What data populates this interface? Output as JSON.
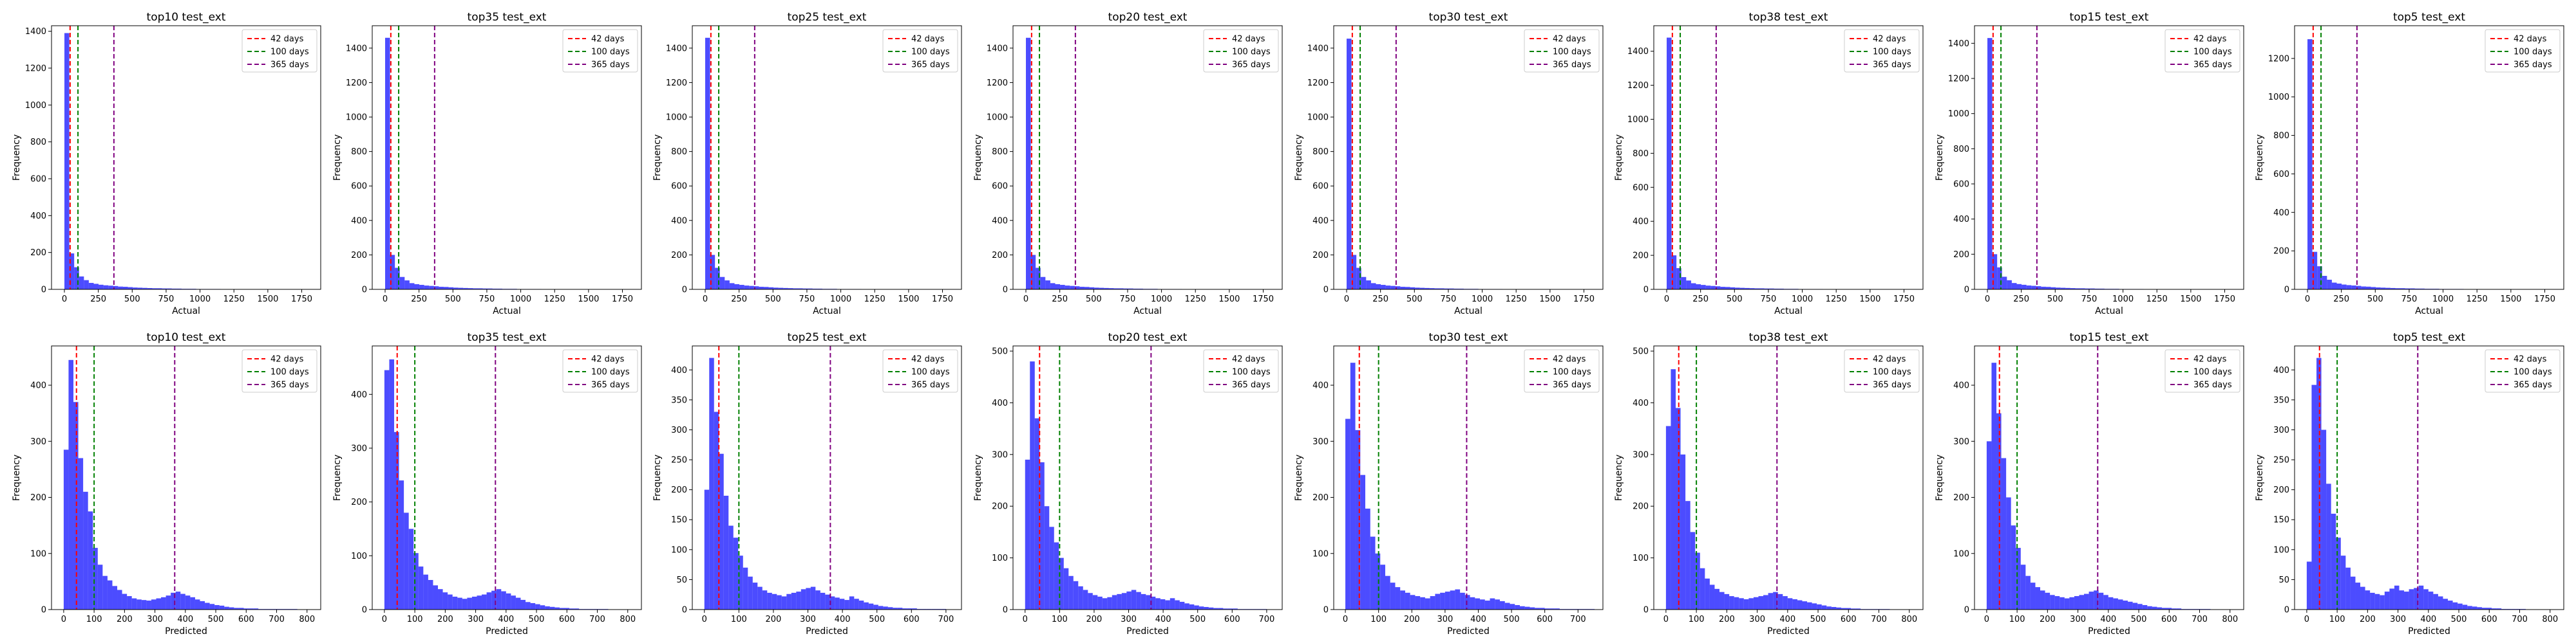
{
  "figure": {
    "legend_entries": [
      {
        "label": "42 days",
        "value": 42,
        "color": "#ff0000"
      },
      {
        "label": "100 days",
        "value": 100,
        "color": "#008000"
      },
      {
        "label": "365 days",
        "value": 365,
        "color": "#800080"
      }
    ],
    "bar_color": "#0000ff"
  },
  "chart_data": [
    {
      "type": "bar",
      "title": "top10 test_ext",
      "xlabel": "Actual",
      "ylabel": "Frequency",
      "xlim": [
        -95,
        1890
      ],
      "ylim": [
        0,
        1430
      ],
      "xticks": [
        0,
        250,
        500,
        750,
        1000,
        1250,
        1500,
        1750
      ],
      "yticks": [
        0,
        200,
        400,
        600,
        800,
        1000,
        1200,
        1400
      ],
      "bin_start": 0,
      "bin_width": 36,
      "values": [
        1390,
        195,
        120,
        70,
        50,
        35,
        30,
        25,
        22,
        20,
        18,
        15,
        14,
        12,
        10,
        9,
        8,
        7,
        6,
        6,
        5,
        5,
        4,
        4,
        3,
        3,
        3,
        2,
        2,
        2,
        2,
        2,
        1,
        1,
        1,
        1,
        1,
        1,
        1,
        1,
        1,
        1,
        1,
        1,
        1,
        1,
        1,
        1,
        1,
        1
      ],
      "legend_position": "upper right"
    },
    {
      "type": "bar",
      "title": "top35 test_ext",
      "xlabel": "Actual",
      "ylabel": "Frequency",
      "xlim": [
        -95,
        1890
      ],
      "ylim": [
        0,
        1530
      ],
      "xticks": [
        0,
        250,
        500,
        750,
        1000,
        1250,
        1500,
        1750
      ],
      "yticks": [
        0,
        200,
        400,
        600,
        800,
        1000,
        1200,
        1400
      ],
      "bin_start": 0,
      "bin_width": 36,
      "values": [
        1460,
        200,
        125,
        72,
        52,
        36,
        30,
        26,
        22,
        20,
        18,
        15,
        14,
        12,
        10,
        9,
        8,
        7,
        6,
        6,
        5,
        5,
        4,
        4,
        3,
        3,
        3,
        2,
        2,
        2,
        2,
        2,
        1,
        1,
        1,
        1,
        1,
        1,
        1,
        1,
        1,
        1,
        1,
        1,
        1,
        1,
        1,
        1,
        1,
        1
      ],
      "legend_position": "upper right"
    },
    {
      "type": "bar",
      "title": "top25 test_ext",
      "xlabel": "Actual",
      "ylabel": "Frequency",
      "xlim": [
        -95,
        1890
      ],
      "ylim": [
        0,
        1530
      ],
      "xticks": [
        0,
        250,
        500,
        750,
        1000,
        1250,
        1500,
        1750
      ],
      "yticks": [
        0,
        200,
        400,
        600,
        800,
        1000,
        1200,
        1400
      ],
      "bin_start": 0,
      "bin_width": 36,
      "values": [
        1460,
        200,
        125,
        72,
        52,
        36,
        30,
        26,
        22,
        20,
        18,
        15,
        14,
        12,
        10,
        9,
        8,
        7,
        6,
        6,
        5,
        5,
        4,
        4,
        3,
        3,
        3,
        2,
        2,
        2,
        2,
        2,
        1,
        1,
        1,
        1,
        1,
        1,
        1,
        1,
        1,
        1,
        1,
        1,
        1,
        1,
        1,
        1,
        1,
        1
      ],
      "legend_position": "upper right"
    },
    {
      "type": "bar",
      "title": "top20 test_ext",
      "xlabel": "Actual",
      "ylabel": "Frequency",
      "xlim": [
        -95,
        1890
      ],
      "ylim": [
        0,
        1530
      ],
      "xticks": [
        0,
        250,
        500,
        750,
        1000,
        1250,
        1500,
        1750
      ],
      "yticks": [
        0,
        200,
        400,
        600,
        800,
        1000,
        1200,
        1400
      ],
      "bin_start": 0,
      "bin_width": 36,
      "values": [
        1460,
        200,
        125,
        72,
        52,
        36,
        30,
        26,
        22,
        20,
        18,
        15,
        14,
        12,
        10,
        9,
        8,
        7,
        6,
        6,
        5,
        5,
        4,
        4,
        3,
        3,
        3,
        2,
        2,
        2,
        2,
        2,
        1,
        1,
        1,
        1,
        1,
        1,
        1,
        1,
        1,
        1,
        1,
        1,
        1,
        1,
        1,
        1,
        1,
        1
      ],
      "legend_position": "upper right"
    },
    {
      "type": "bar",
      "title": "top30 test_ext",
      "xlabel": "Actual",
      "ylabel": "Frequency",
      "xlim": [
        -95,
        1890
      ],
      "ylim": [
        0,
        1530
      ],
      "xticks": [
        0,
        250,
        500,
        750,
        1000,
        1250,
        1500,
        1750
      ],
      "yticks": [
        0,
        200,
        400,
        600,
        800,
        1000,
        1200,
        1400
      ],
      "bin_start": 0,
      "bin_width": 36,
      "values": [
        1455,
        200,
        125,
        72,
        52,
        36,
        30,
        26,
        22,
        20,
        18,
        15,
        14,
        12,
        10,
        9,
        8,
        7,
        6,
        6,
        5,
        5,
        4,
        4,
        3,
        3,
        3,
        2,
        2,
        2,
        2,
        2,
        1,
        1,
        1,
        1,
        1,
        1,
        1,
        1,
        1,
        1,
        1,
        1,
        1,
        1,
        1,
        1,
        1,
        1
      ],
      "legend_position": "upper right"
    },
    {
      "type": "bar",
      "title": "top38 test_ext",
      "xlabel": "Actual",
      "ylabel": "Frequency",
      "xlim": [
        -95,
        1890
      ],
      "ylim": [
        0,
        1550
      ],
      "xticks": [
        0,
        250,
        500,
        750,
        1000,
        1250,
        1500,
        1750
      ],
      "yticks": [
        0,
        200,
        400,
        600,
        800,
        1000,
        1200,
        1400
      ],
      "bin_start": 0,
      "bin_width": 36,
      "values": [
        1480,
        200,
        125,
        72,
        52,
        36,
        30,
        26,
        22,
        20,
        18,
        15,
        14,
        12,
        10,
        9,
        8,
        7,
        6,
        6,
        5,
        5,
        4,
        4,
        3,
        3,
        3,
        2,
        2,
        2,
        2,
        2,
        1,
        1,
        1,
        1,
        1,
        1,
        1,
        1,
        1,
        1,
        1,
        1,
        1,
        1,
        1,
        1,
        1,
        1
      ],
      "legend_position": "upper right"
    },
    {
      "type": "bar",
      "title": "top15 test_ext",
      "xlabel": "Actual",
      "ylabel": "Frequency",
      "xlim": [
        -95,
        1890
      ],
      "ylim": [
        0,
        1500
      ],
      "xticks": [
        0,
        250,
        500,
        750,
        1000,
        1250,
        1500,
        1750
      ],
      "yticks": [
        0,
        200,
        400,
        600,
        800,
        1000,
        1200,
        1400
      ],
      "bin_start": 0,
      "bin_width": 36,
      "values": [
        1430,
        200,
        125,
        72,
        52,
        36,
        30,
        26,
        22,
        20,
        18,
        15,
        14,
        12,
        10,
        9,
        8,
        7,
        6,
        6,
        5,
        5,
        4,
        4,
        3,
        3,
        3,
        2,
        2,
        2,
        2,
        2,
        1,
        1,
        1,
        1,
        1,
        1,
        1,
        1,
        1,
        1,
        1,
        1,
        1,
        1,
        1,
        1,
        1,
        1
      ],
      "legend_position": "upper right"
    },
    {
      "type": "bar",
      "title": "top5 test_ext",
      "xlabel": "Actual",
      "ylabel": "Frequency",
      "xlim": [
        -95,
        1890
      ],
      "ylim": [
        0,
        1370
      ],
      "xticks": [
        0,
        250,
        500,
        750,
        1000,
        1250,
        1500,
        1750
      ],
      "yticks": [
        0,
        200,
        400,
        600,
        800,
        1000,
        1200
      ],
      "bin_start": 0,
      "bin_width": 36,
      "values": [
        1300,
        195,
        120,
        70,
        50,
        35,
        30,
        25,
        22,
        20,
        18,
        15,
        14,
        12,
        10,
        9,
        8,
        7,
        6,
        6,
        5,
        5,
        4,
        4,
        3,
        3,
        3,
        2,
        2,
        2,
        2,
        2,
        1,
        1,
        1,
        1,
        1,
        1,
        1,
        1,
        1,
        1,
        1,
        1,
        1,
        1,
        1,
        1,
        1,
        1
      ],
      "legend_position": "upper right"
    },
    {
      "type": "bar",
      "title": "top10 test_ext",
      "xlabel": "Predicted",
      "ylabel": "Frequency",
      "xlim": [
        -40,
        845
      ],
      "ylim": [
        0,
        470
      ],
      "xticks": [
        0,
        100,
        200,
        300,
        400,
        500,
        600,
        700,
        800
      ],
      "yticks": [
        0,
        100,
        200,
        300,
        400
      ],
      "bin_start": 0,
      "bin_width": 16,
      "values": [
        285,
        445,
        370,
        270,
        210,
        175,
        110,
        80,
        60,
        52,
        42,
        35,
        28,
        24,
        20,
        18,
        17,
        16,
        18,
        20,
        22,
        25,
        30,
        32,
        28,
        25,
        22,
        18,
        15,
        12,
        10,
        8,
        7,
        5,
        4,
        3,
        3,
        2,
        2,
        2,
        1,
        1,
        1,
        1,
        1,
        1,
        1,
        1,
        0,
        0
      ],
      "legend_position": "upper right"
    },
    {
      "type": "bar",
      "title": "top35 test_ext",
      "xlabel": "Predicted",
      "ylabel": "Frequency",
      "xlim": [
        -40,
        845
      ],
      "ylim": [
        0,
        490
      ],
      "xticks": [
        0,
        100,
        200,
        300,
        400,
        500,
        600,
        700,
        800
      ],
      "yticks": [
        0,
        100,
        200,
        300,
        400
      ],
      "bin_start": 0,
      "bin_width": 16,
      "values": [
        445,
        465,
        330,
        240,
        180,
        150,
        105,
        80,
        65,
        55,
        45,
        38,
        32,
        28,
        24,
        22,
        20,
        22,
        24,
        26,
        28,
        32,
        35,
        38,
        34,
        30,
        26,
        22,
        18,
        14,
        12,
        10,
        8,
        6,
        5,
        4,
        3,
        3,
        2,
        2,
        1,
        1,
        1,
        1,
        1,
        1,
        0,
        0,
        0,
        0
      ],
      "legend_position": "upper right"
    },
    {
      "type": "bar",
      "title": "top25 test_ext",
      "xlabel": "Predicted",
      "ylabel": "Frequency",
      "xlim": [
        -35,
        745
      ],
      "ylim": [
        0,
        440
      ],
      "xticks": [
        0,
        100,
        200,
        300,
        400,
        500,
        600,
        700
      ],
      "yticks": [
        0,
        50,
        100,
        150,
        200,
        250,
        300,
        350,
        400
      ],
      "bin_start": 0,
      "bin_width": 14,
      "values": [
        200,
        420,
        330,
        260,
        190,
        140,
        120,
        90,
        70,
        55,
        45,
        38,
        32,
        28,
        26,
        24,
        22,
        26,
        28,
        30,
        34,
        36,
        38,
        32,
        28,
        25,
        22,
        20,
        18,
        16,
        22,
        18,
        15,
        12,
        10,
        8,
        6,
        5,
        4,
        3,
        3,
        2,
        2,
        2,
        1,
        1,
        1,
        1,
        1,
        1
      ],
      "legend_position": "upper right"
    },
    {
      "type": "bar",
      "title": "top20 test_ext",
      "xlabel": "Predicted",
      "ylabel": "Frequency",
      "xlim": [
        -35,
        745
      ],
      "ylim": [
        0,
        510
      ],
      "xticks": [
        0,
        100,
        200,
        300,
        400,
        500,
        600,
        700
      ],
      "yticks": [
        0,
        100,
        200,
        300,
        400,
        500
      ],
      "bin_start": 0,
      "bin_width": 14,
      "values": [
        290,
        480,
        370,
        285,
        200,
        160,
        130,
        100,
        80,
        65,
        55,
        45,
        38,
        32,
        28,
        25,
        22,
        24,
        28,
        30,
        32,
        35,
        38,
        34,
        30,
        28,
        25,
        22,
        20,
        18,
        22,
        18,
        15,
        12,
        10,
        8,
        6,
        5,
        4,
        3,
        3,
        2,
        2,
        2,
        1,
        1,
        1,
        1,
        1,
        1
      ],
      "legend_position": "upper right"
    },
    {
      "type": "bar",
      "title": "top30 test_ext",
      "xlabel": "Predicted",
      "ylabel": "Frequency",
      "xlim": [
        -35,
        775
      ],
      "ylim": [
        0,
        470
      ],
      "xticks": [
        0,
        100,
        200,
        300,
        400,
        500,
        600,
        700
      ],
      "yticks": [
        0,
        100,
        200,
        300,
        400
      ],
      "bin_start": 0,
      "bin_width": 15,
      "values": [
        340,
        440,
        320,
        240,
        180,
        130,
        100,
        80,
        60,
        48,
        40,
        34,
        30,
        26,
        24,
        22,
        20,
        24,
        28,
        30,
        32,
        34,
        36,
        30,
        26,
        22,
        20,
        18,
        16,
        20,
        18,
        15,
        12,
        10,
        8,
        6,
        5,
        4,
        3,
        3,
        2,
        2,
        2,
        1,
        1,
        1,
        1,
        1,
        1,
        1
      ],
      "legend_position": "upper right"
    },
    {
      "type": "bar",
      "title": "top38 test_ext",
      "xlabel": "Predicted",
      "ylabel": "Frequency",
      "xlim": [
        -40,
        845
      ],
      "ylim": [
        0,
        510
      ],
      "xticks": [
        0,
        100,
        200,
        300,
        400,
        500,
        600,
        700,
        800
      ],
      "yticks": [
        0,
        100,
        200,
        300,
        400,
        500
      ],
      "bin_start": 0,
      "bin_width": 16,
      "values": [
        355,
        465,
        390,
        300,
        210,
        150,
        110,
        80,
        60,
        48,
        40,
        34,
        30,
        26,
        24,
        22,
        20,
        22,
        24,
        26,
        28,
        32,
        34,
        30,
        26,
        22,
        20,
        18,
        16,
        14,
        12,
        10,
        8,
        6,
        5,
        4,
        3,
        3,
        2,
        2,
        1,
        1,
        1,
        1,
        1,
        1,
        0,
        0,
        0,
        0
      ],
      "legend_position": "upper right"
    },
    {
      "type": "bar",
      "title": "top15 test_ext",
      "xlabel": "Predicted",
      "ylabel": "Frequency",
      "xlim": [
        -40,
        845
      ],
      "ylim": [
        0,
        470
      ],
      "xticks": [
        0,
        100,
        200,
        300,
        400,
        500,
        600,
        700,
        800
      ],
      "yticks": [
        0,
        100,
        200,
        300,
        400
      ],
      "bin_start": 0,
      "bin_width": 16,
      "values": [
        300,
        440,
        350,
        270,
        200,
        150,
        110,
        80,
        60,
        48,
        40,
        34,
        30,
        26,
        24,
        22,
        20,
        22,
        24,
        26,
        28,
        32,
        34,
        30,
        26,
        22,
        20,
        18,
        16,
        14,
        12,
        10,
        8,
        6,
        5,
        4,
        3,
        3,
        2,
        2,
        1,
        1,
        1,
        1,
        1,
        1,
        0,
        0,
        0,
        0
      ],
      "legend_position": "upper right"
    },
    {
      "type": "bar",
      "title": "top5 test_ext",
      "xlabel": "Predicted",
      "ylabel": "Frequency",
      "xlim": [
        -40,
        845
      ],
      "ylim": [
        0,
        440
      ],
      "xticks": [
        0,
        100,
        200,
        300,
        400,
        500,
        600,
        700,
        800
      ],
      "yticks": [
        0,
        50,
        100,
        150,
        200,
        250,
        300,
        350,
        400
      ],
      "bin_start": 0,
      "bin_width": 16,
      "values": [
        80,
        375,
        420,
        300,
        210,
        160,
        120,
        90,
        70,
        55,
        45,
        38,
        32,
        28,
        26,
        24,
        30,
        35,
        40,
        32,
        30,
        34,
        36,
        40,
        34,
        30,
        26,
        22,
        18,
        15,
        12,
        10,
        8,
        6,
        5,
        4,
        3,
        3,
        2,
        2,
        1,
        1,
        1,
        1,
        1,
        0,
        0,
        0,
        0,
        0
      ],
      "legend_position": "upper right"
    }
  ]
}
